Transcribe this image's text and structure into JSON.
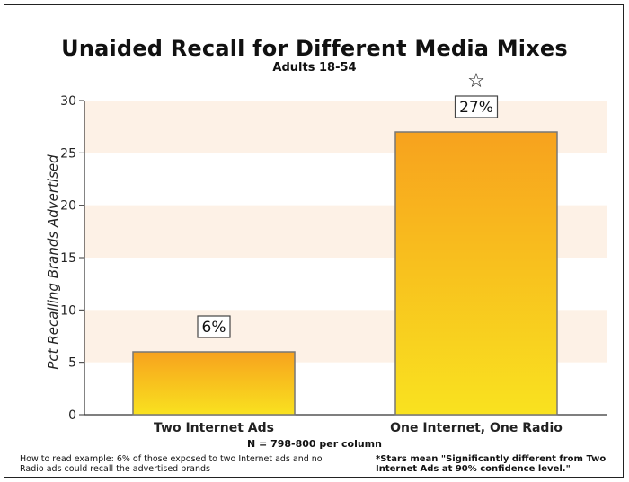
{
  "chart_data": {
    "type": "bar",
    "title": "Unaided Recall for Different Media Mixes",
    "subtitle": "Adults 18-54",
    "ylabel": "Pct Recalling Brands Advertised",
    "xlabel": "",
    "ylim": [
      0,
      30
    ],
    "yticks": [
      0,
      5,
      10,
      15,
      20,
      25,
      30
    ],
    "ytick_labels": [
      "0",
      "5",
      "10",
      "15",
      "20",
      "25",
      "30"
    ],
    "categories": [
      "Two Internet Ads",
      "One Internet, One Radio"
    ],
    "values": [
      6,
      27
    ],
    "data_labels": [
      "6%",
      "27%"
    ],
    "significance_marker": {
      "category": "One Internet, One Radio",
      "symbol": "☆"
    },
    "colors": {
      "bar_top": "#f9e21f",
      "bar_bottom": "#f7a21e",
      "band": "#fdf1e6",
      "axis": "#333333",
      "bar_edge": "#777777"
    },
    "grid": false,
    "legend": "none"
  },
  "notes": {
    "n_text": "N = 798-800 per column",
    "how_to": "How to read example: 6% of those exposed to two Internet ads and no Radio ads could recall the advertised brands",
    "stars": "*Stars mean \"Significantly different from Two Internet Ads at 90% confidence level.\""
  }
}
